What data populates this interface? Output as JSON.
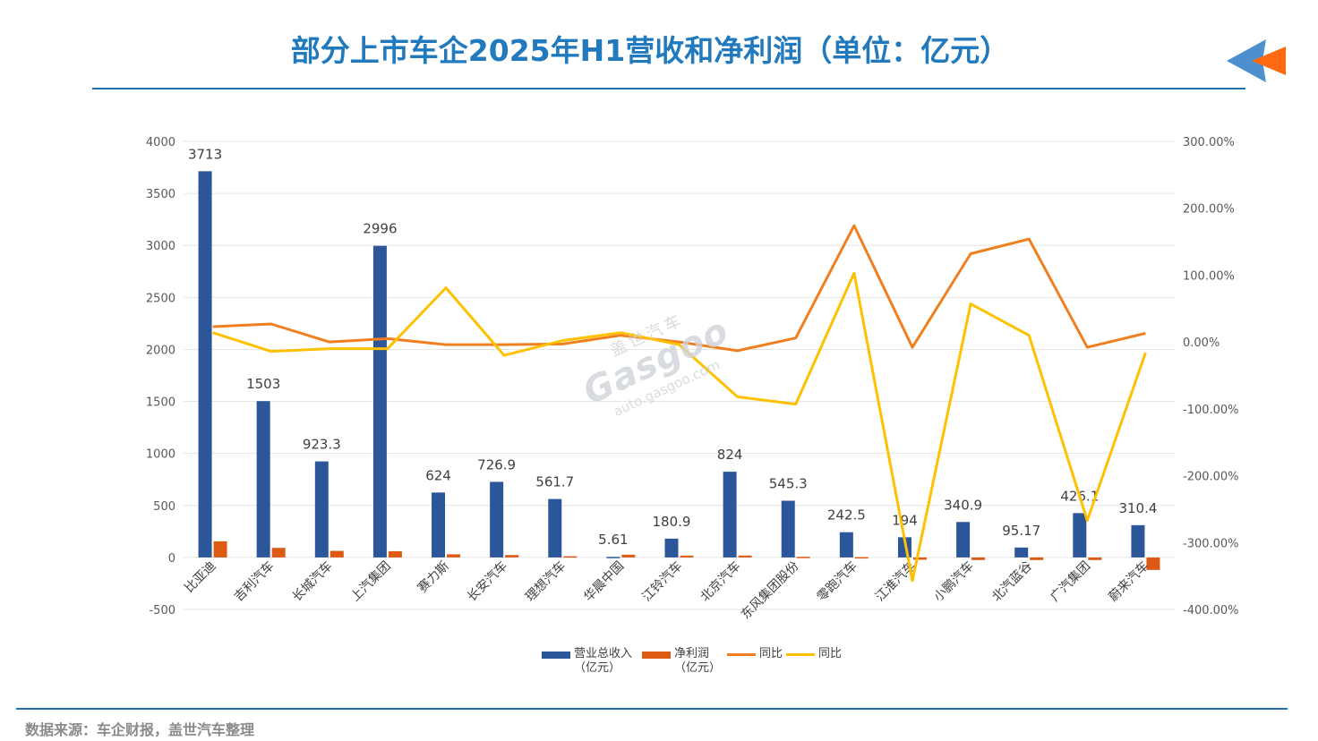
{
  "title": "部分上市车企2025年H1营收和净利润（单位：亿元）",
  "source": "数据来源：车企财报，盖世汽车整理",
  "watermark": {
    "brand": "Gasgoo",
    "chinese": "盖世汽车",
    "url": "auto.gasgoo.com"
  },
  "colors": {
    "title": "#2179be",
    "rule": "#1f6fa8",
    "revenue": "#2b579a",
    "net_profit": "#dd5a13",
    "yoy_orange": "#f07f1f",
    "yoy_yellow": "#ffc000",
    "grid": "#e6e6e6"
  },
  "legend": [
    {
      "label": "营业总收入",
      "sub": "（亿元）",
      "kind": "bar",
      "color": "#2b579a"
    },
    {
      "label": "净利润",
      "sub": "（亿元）",
      "kind": "bar",
      "color": "#dd5a13"
    },
    {
      "label": "同比",
      "sub": "",
      "kind": "line",
      "color": "#f07f1f"
    },
    {
      "label": "同比",
      "sub": "",
      "kind": "line",
      "color": "#ffc000"
    }
  ],
  "chart_data": {
    "type": "bar",
    "categories": [
      "比亚迪",
      "吉利汽车",
      "长城汽车",
      "上汽集团",
      "赛力斯",
      "长安汽车",
      "理想汽车",
      "华晨中国",
      "江铃汽车",
      "北京汽车",
      "东风集团股份",
      "零跑汽车",
      "江淮汽车",
      "小鹏汽车",
      "北汽蓝谷",
      "广汽集团",
      "蔚来汽车"
    ],
    "y_left": {
      "min": -500,
      "max": 4000,
      "ticks": [
        -500,
        0,
        500,
        1000,
        1500,
        2000,
        2500,
        3000,
        3500,
        4000
      ]
    },
    "y_right": {
      "min": -400,
      "max": 300,
      "ticks": [
        "-400.00%",
        "-300.00%",
        "-200.00%",
        "-100.00%",
        "0.00%",
        "100.00%",
        "200.00%",
        "300.00%"
      ],
      "tick_values": [
        -400,
        -300,
        -200,
        -100,
        0,
        100,
        200,
        300
      ]
    },
    "grid": true,
    "legend_position": "bottom",
    "series": [
      {
        "name": "营业总收入（亿元）",
        "kind": "bar",
        "axis": "left",
        "values": [
          3713,
          1503,
          923.3,
          2996,
          624,
          726.9,
          561.7,
          5.61,
          180.9,
          824,
          545.3,
          242.5,
          194,
          340.9,
          95.17,
          426.1,
          310.4
        ],
        "labels": [
          "3713",
          "1503",
          "923.3",
          "2996",
          "624",
          "726.9",
          "561.7",
          "5.61",
          "180.9",
          "824",
          "545.3",
          "242.5",
          "194",
          "340.9",
          "95.17",
          "426.1",
          "310.4"
        ]
      },
      {
        "name": "净利润（亿元）",
        "kind": "bar",
        "axis": "left",
        "values": [
          155,
          92,
          63,
          60,
          30,
          23,
          11,
          26,
          18,
          18,
          6,
          3,
          -22,
          -25,
          -25,
          -25,
          -120
        ]
      },
      {
        "name": "同比",
        "kind": "line",
        "axis": "right",
        "color_key": "yoy_orange",
        "values": [
          23,
          27,
          0,
          5,
          -4,
          -4,
          -3,
          10,
          0,
          -13,
          6,
          174,
          -8,
          132,
          154,
          -8,
          13
        ]
      },
      {
        "name": "同比",
        "kind": "line",
        "axis": "right",
        "color_key": "yoy_yellow",
        "values": [
          14,
          -14,
          -10,
          -10,
          81,
          -20,
          2,
          14,
          -4,
          -82,
          -93,
          103,
          -357,
          57,
          10,
          -267,
          -16
        ]
      }
    ]
  }
}
